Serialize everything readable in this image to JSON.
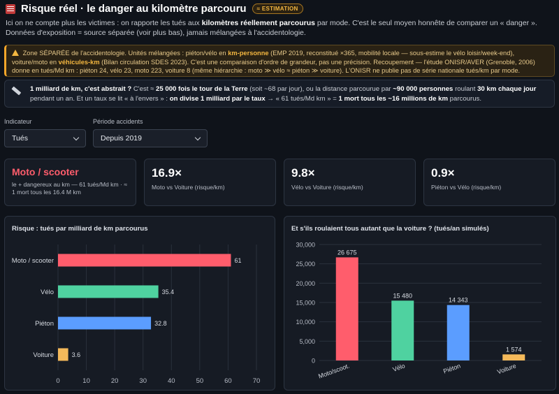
{
  "header": {
    "title": "Risque réel · le danger au kilomètre parcouru",
    "badge": "≈ ESTIMATION"
  },
  "intro": {
    "p1": "Ici on ne compte plus les victimes : on rapporte les tués aux ",
    "b1": "kilomètres réellement parcourus",
    "p2": " par mode. C'est le seul moyen honnête de comparer un « danger ». Données d'exposition = source séparée (voir plus bas), jamais mélangées à l'accidentologie."
  },
  "warning": {
    "p1": " Zone SÉPARÉE de l'accidentologie. Unités mélangées : piéton/vélo en ",
    "b1": "km-personne",
    "p2": " (EMP 2019, reconstitué ×365, mobilité locale — sous-estime le vélo loisir/week-end), voiture/moto en ",
    "b2": "véhicules-km",
    "p3": " (Bilan circulation SDES 2023). C'est une comparaison d'ordre de grandeur, pas une précision. Recoupement — l'étude ONISR/AVER (Grenoble, 2006) donne en tués/Md km : piéton 24, vélo 23, moto 223, voiture 8 (même hiérarchie : moto ≫ vélo ≈ piéton ≫ voiture). L'ONISR ne publie pas de série nationale tués/km par mode."
  },
  "info": {
    "b1": "1 milliard de km, c'est abstrait ?",
    "p1": " C'est ≈ ",
    "b2": "25 000 fois le tour de la Terre",
    "p2": " (soit ~68 par jour), ou la distance parcourue par ",
    "b3": "~90 000 personnes",
    "p3": " roulant ",
    "b4": "30 km chaque jour",
    "p4": " pendant un an. Et un taux se lit « à l'envers » : ",
    "b5": "on divise 1 milliard par le taux",
    "p5": " → « 61 tués/Md km » = ",
    "b6": "1 mort tous les ~16 millions de km",
    "p6": " parcourus."
  },
  "filters": {
    "indicator": {
      "label": "Indicateur",
      "value": "Tués"
    },
    "period": {
      "label": "Période accidents",
      "value": "Depuis 2019"
    }
  },
  "kpis": [
    {
      "big": "Moto / scooter",
      "sub": "le + dangereux au km — 61 tués/Md km · ≈ 1 mort tous les 16.4 M km"
    },
    {
      "big": "16.9×",
      "sub": "Moto vs Voiture (risque/km)"
    },
    {
      "big": "9.8×",
      "sub": "Vélo vs Voiture (risque/km)"
    },
    {
      "big": "0.9×",
      "sub": "Piéton vs Vélo (risque/km)"
    }
  ],
  "colors": {
    "moto": "#ff5d6c",
    "velo": "#4fd2a0",
    "pieton": "#5b9dff",
    "voiture": "#f4b95a"
  },
  "chart_data": [
    {
      "type": "bar",
      "orientation": "horizontal",
      "title": "Risque : tués par milliard de km parcourus",
      "categories": [
        "Moto / scooter",
        "Vélo",
        "Piéton",
        "Voiture"
      ],
      "values": [
        61,
        35.4,
        32.8,
        3.6
      ],
      "value_labels": [
        "61",
        "35.4",
        "32.8",
        "3.6"
      ],
      "xlim": [
        0,
        70
      ],
      "ticks": [
        0,
        10,
        20,
        30,
        40,
        50,
        60,
        70
      ],
      "grid": true
    },
    {
      "type": "bar",
      "title": "Et s'ils roulaient tous autant que la voiture ? (tués/an simulés)",
      "categories": [
        "Moto/scoot.",
        "Vélo",
        "Piéton",
        "Voiture"
      ],
      "values": [
        26675,
        15480,
        14343,
        1574
      ],
      "value_labels": [
        "26 675",
        "15 480",
        "14 343",
        "1 574"
      ],
      "ylim": [
        0,
        30000
      ],
      "ticks": [
        0,
        5000,
        10000,
        15000,
        20000,
        25000,
        30000
      ],
      "tick_labels": [
        "0",
        "5,000",
        "10,000",
        "15,000",
        "20,000",
        "25,000",
        "30,000"
      ],
      "grid": true
    }
  ]
}
